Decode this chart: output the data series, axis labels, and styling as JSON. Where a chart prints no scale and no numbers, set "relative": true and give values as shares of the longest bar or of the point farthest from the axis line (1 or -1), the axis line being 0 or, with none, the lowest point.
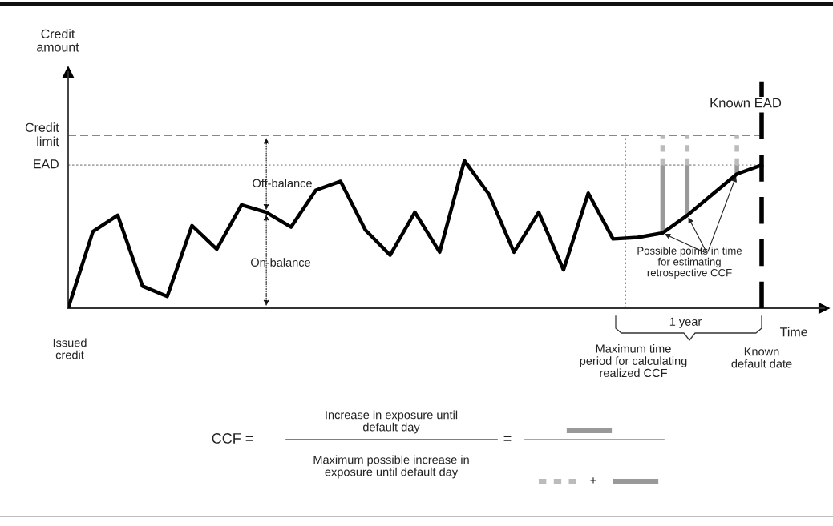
{
  "chart_data": {
    "type": "line",
    "relative": true,
    "xlabel": "Time",
    "categories": [
      null,
      null,
      null,
      null,
      null,
      null,
      null,
      null,
      null,
      null,
      null,
      null,
      null,
      null,
      null,
      null,
      null,
      null,
      null,
      null,
      null,
      null,
      null,
      null,
      null,
      null,
      null,
      null,
      null
    ],
    "series": [
      {
        "color": "#000000",
        "values": [
          0,
          0.52,
          0.63,
          0.15,
          0.08,
          0.56,
          0.4,
          0.7,
          0.65,
          0.55,
          0.8,
          0.86,
          0.53,
          0.36,
          0.65,
          0.38,
          1.0,
          0.77,
          0.38,
          0.65,
          0.26,
          0.78,
          0.47,
          0.48,
          0.51,
          0.63,
          0.77,
          0.91,
          0.97
        ]
      }
    ],
    "ref_lines": [
      {
        "axis": "y",
        "value": 1.17,
        "label": "Credit\nlimit",
        "color": "#888888",
        "line_style": "dashed"
      },
      {
        "axis": "y",
        "value": 0.97,
        "label": "EAD",
        "color": "#aaaaaa",
        "line_style": "dotted"
      }
    ],
    "annotations": [
      "Issued\ncredit",
      "Off-balance",
      "On-balance",
      "Possible points in time\nfor estimating\nretrospective CCF",
      "1 year",
      "Maximum time\nperiod for calculating\nrealized CCF",
      "Known\ndefault date",
      "CCF =",
      "Increase in exposure until\ndefault day",
      "Maximum possible increase in\nexposure until default day",
      "=",
      "+",
      "Known EAD",
      "Credit\namount"
    ]
  }
}
